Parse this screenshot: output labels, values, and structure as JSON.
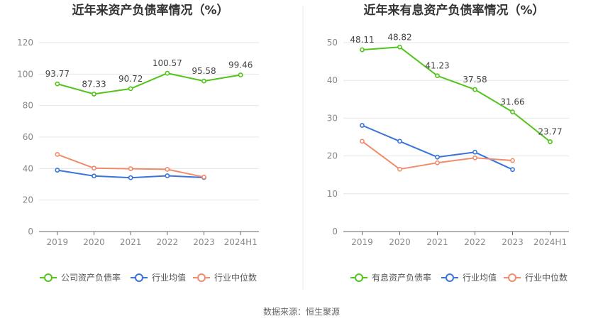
{
  "chart_data": [
    {
      "type": "line",
      "title": "近年来资产负债率情况（%）",
      "categories": [
        "2019",
        "2020",
        "2021",
        "2022",
        "2023",
        "2024H1"
      ],
      "yticks": [
        "0",
        "20",
        "40",
        "60",
        "80",
        "100",
        "120"
      ],
      "ylim": [
        0,
        120
      ],
      "xlabel": "",
      "ylabel": "",
      "legend_position": "bottom",
      "series": [
        {
          "name": "公司资产负债率",
          "color": "#52c41a",
          "values": [
            93.77,
            87.33,
            90.72,
            100.57,
            95.58,
            99.46
          ],
          "labels": [
            "93.77",
            "87.33",
            "90.72",
            "100.57",
            "95.58",
            "99.46"
          ]
        },
        {
          "name": "行业均值",
          "color": "#3a74d8",
          "values": [
            39.0,
            35.3,
            34.2,
            35.4,
            34.3,
            null
          ],
          "labels": null
        },
        {
          "name": "行业中位数",
          "color": "#f08c6c",
          "values": [
            49.0,
            40.3,
            39.9,
            39.5,
            34.6,
            null
          ],
          "labels": null
        }
      ]
    },
    {
      "type": "line",
      "title": "近年来有息资产负债率情况（%）",
      "categories": [
        "2019",
        "2020",
        "2021",
        "2022",
        "2023",
        "2024H1"
      ],
      "yticks": [
        "0",
        "10",
        "20",
        "30",
        "40",
        "50"
      ],
      "ylim": [
        0,
        50
      ],
      "xlabel": "",
      "ylabel": "",
      "legend_position": "bottom",
      "series": [
        {
          "name": "有息资产负债率",
          "color": "#52c41a",
          "values": [
            48.11,
            48.82,
            41.23,
            37.58,
            31.66,
            23.77
          ],
          "labels": [
            "48.11",
            "48.82",
            "41.23",
            "37.58",
            "31.66",
            "23.77"
          ]
        },
        {
          "name": "行业均值",
          "color": "#3a74d8",
          "values": [
            28.1,
            23.9,
            19.7,
            21.0,
            16.4,
            null
          ],
          "labels": null
        },
        {
          "name": "行业中位数",
          "color": "#f08c6c",
          "values": [
            23.9,
            16.5,
            18.2,
            19.5,
            18.8,
            null
          ],
          "labels": null
        }
      ]
    }
  ],
  "footer": {
    "source": "数据来源：恒生聚源"
  }
}
